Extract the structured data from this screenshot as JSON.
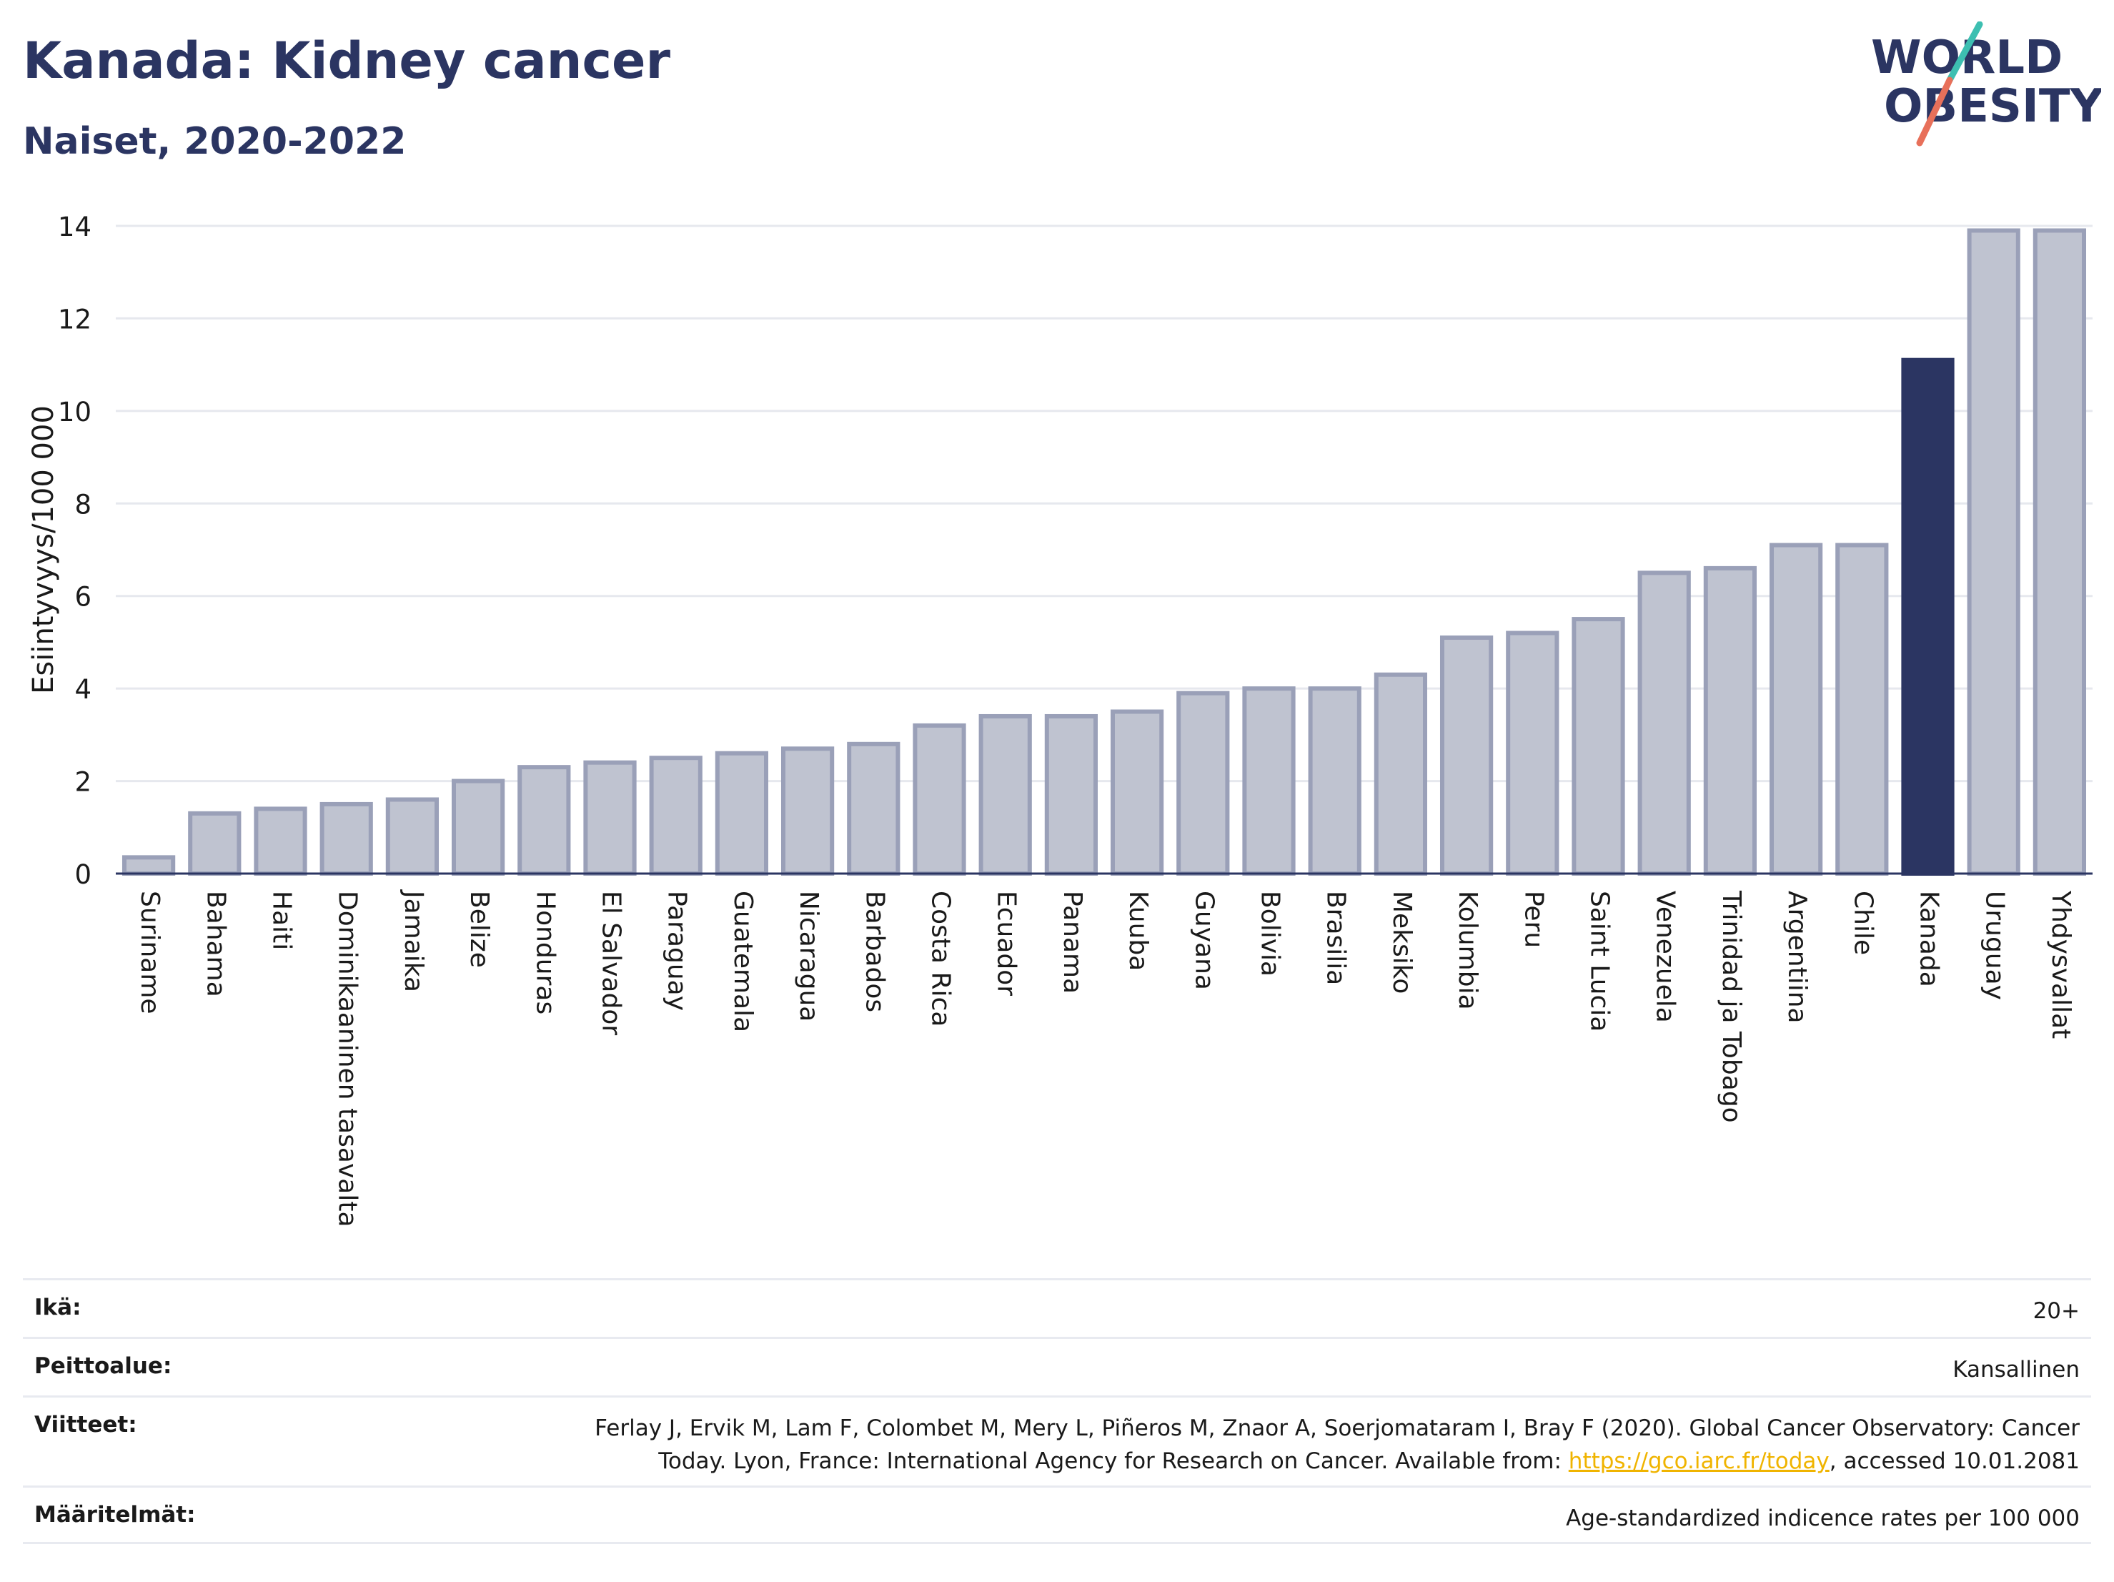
{
  "title": "Kanada: Kidney cancer",
  "subtitle": "Naiset, 2020-2022",
  "logo": {
    "line1": "WORLD",
    "line2": "OBESITY"
  },
  "colors": {
    "bar": "#bfc3d0",
    "bar_stroke": "#9aa0b8",
    "highlight": "#2b3562",
    "grid": "#e6e8ee",
    "axis": "#2b3562",
    "logo_teal": "#3dbfb1",
    "logo_coral": "#e8705a",
    "link": "#f0b400"
  },
  "chart_data": {
    "type": "bar",
    "ylabel": "Esiintyvyys/100 000",
    "xlabel": "",
    "ylim": [
      0,
      14
    ],
    "yticks": [
      0,
      2,
      4,
      6,
      8,
      10,
      12,
      14
    ],
    "grid": true,
    "highlight": "Kanada",
    "categories": [
      "Suriname",
      "Bahama",
      "Haiti",
      "Dominikaaninen tasavalta",
      "Jamaika",
      "Belize",
      "Honduras",
      "El Salvador",
      "Paraguay",
      "Guatemala",
      "Nicaragua",
      "Barbados",
      "Costa Rica",
      "Ecuador",
      "Panama",
      "Kuuba",
      "Guyana",
      "Bolivia",
      "Brasilia",
      "Meksiko",
      "Kolumbia",
      "Peru",
      "Saint Lucia",
      "Venezuela",
      "Trinidad ja Tobago",
      "Argentiina",
      "Chile",
      "Kanada",
      "Uruguay",
      "Yhdysvallat"
    ],
    "values": [
      0.35,
      1.3,
      1.4,
      1.5,
      1.6,
      2.0,
      2.3,
      2.4,
      2.5,
      2.6,
      2.7,
      2.8,
      3.2,
      3.4,
      3.4,
      3.5,
      3.9,
      4.0,
      4.0,
      4.3,
      5.1,
      5.2,
      5.5,
      6.5,
      6.6,
      7.1,
      7.1,
      11.1,
      13.9,
      13.9
    ]
  },
  "meta": {
    "age_label": "Ikä:",
    "age_value": "20+",
    "coverage_label": "Peittoalue:",
    "coverage_value": "Kansallinen",
    "refs_label": "Viitteet:",
    "refs_line1": "Ferlay J, Ervik M, Lam F, Colombet M, Mery L, Piñeros M, Znaor A, Soerjomataram I, Bray F (2020). Global Cancer Observatory: Cancer",
    "refs_line2_prefix": "Today. Lyon, France: International Agency for Research on Cancer. Available from: ",
    "refs_link": "https://gco.iarc.fr/today",
    "refs_line2_suffix": ", accessed 10.01.2081",
    "definitions_label": "Määritelmät:",
    "definitions_value": "Age-standardized indicence rates per 100 000"
  }
}
